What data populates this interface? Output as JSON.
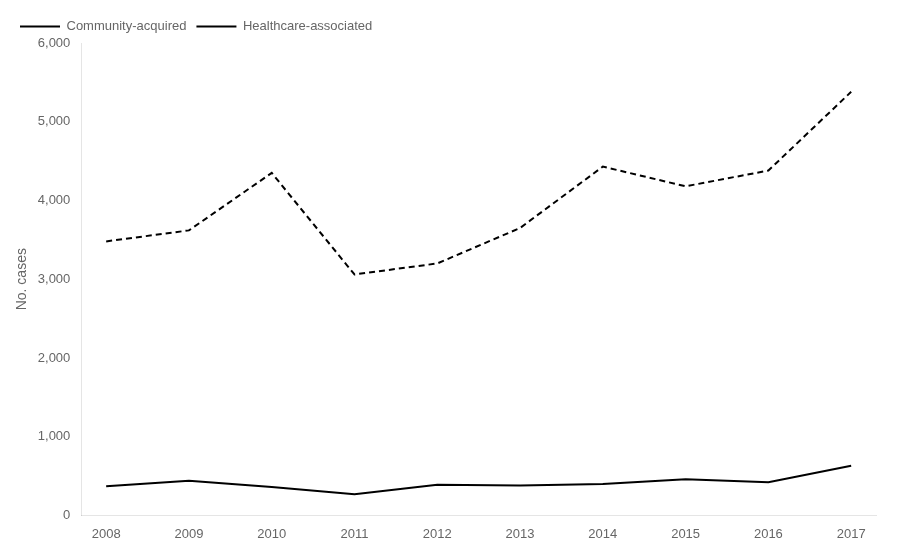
{
  "chart_data": {
    "type": "line",
    "x": [
      2008,
      2009,
      2010,
      2011,
      2012,
      2013,
      2014,
      2015,
      2016,
      2017
    ],
    "series": [
      {
        "name": "Community-acquired",
        "color": "#000000",
        "line_style": "dashed",
        "values": [
          3480,
          3620,
          4350,
          3060,
          3200,
          3650,
          4430,
          4180,
          4380,
          5380
        ]
      },
      {
        "name": "Healthcare-associated",
        "color": "#000000",
        "line_style": "solid",
        "values": [
          370,
          440,
          360,
          270,
          390,
          380,
          400,
          460,
          420,
          630
        ]
      }
    ],
    "ylabel": "No. cases",
    "xlim": [
      2007.7,
      2017.3
    ],
    "xticks": [
      2008,
      2009,
      2010,
      2011,
      2012,
      2013,
      2014,
      2015,
      2016,
      2017
    ],
    "ylim": [
      0,
      6000
    ],
    "yticks": [
      0,
      {
        "value": 1000,
        "label": "1,000"
      },
      {
        "value": 2000,
        "label": "2,000"
      },
      {
        "value": 3000,
        "label": "3,000"
      },
      {
        "value": 4000,
        "label": "4,000"
      },
      {
        "value": 5000,
        "label": "5,000"
      },
      {
        "value": 6000,
        "label": "6,000"
      }
    ],
    "grid": false,
    "legend": "upper left"
  }
}
